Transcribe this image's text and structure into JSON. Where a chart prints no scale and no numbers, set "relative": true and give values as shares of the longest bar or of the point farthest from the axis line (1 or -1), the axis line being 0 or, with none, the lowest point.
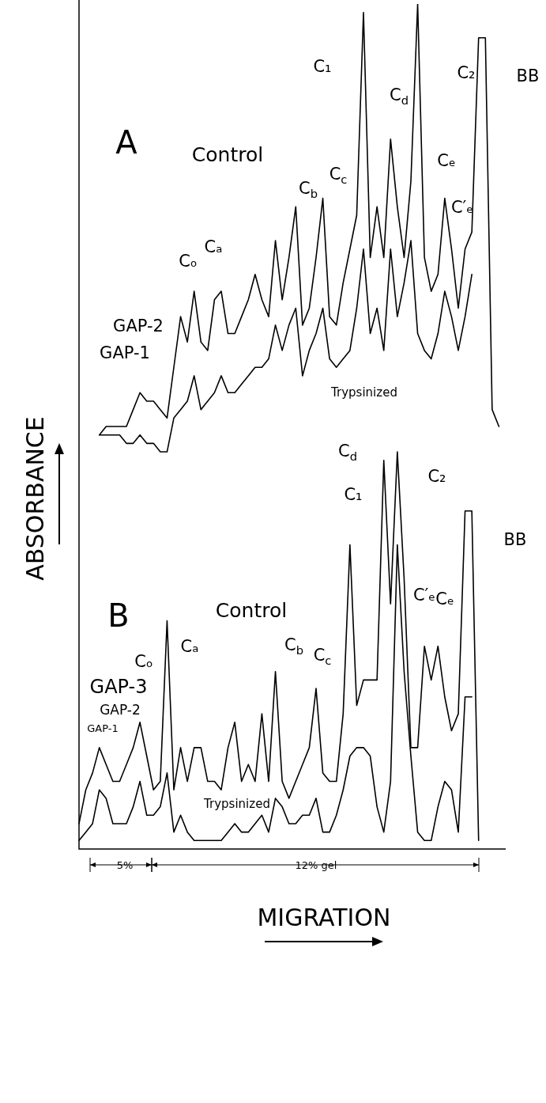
{
  "chart_data": {
    "type": "line",
    "relative": true,
    "marker": "none",
    "legend": false,
    "xlabel": "MIGRATION",
    "ylabel": "ABSORBANCE",
    "categories": [
      null,
      null,
      null,
      null,
      null,
      null,
      null,
      null,
      null,
      null,
      null,
      null,
      null,
      null,
      null,
      null,
      null,
      null,
      null,
      null,
      null,
      null,
      null,
      null,
      null,
      null,
      null,
      null,
      null,
      null,
      null,
      null,
      null,
      null,
      null,
      null,
      null,
      null,
      null,
      null,
      null,
      null,
      null,
      null,
      null,
      null,
      null,
      null,
      null,
      null,
      null,
      null,
      null,
      null,
      null,
      null,
      null,
      null,
      null,
      null,
      null,
      null,
      null,
      null
    ],
    "series": [
      {
        "name": "Control",
        "color": "#000000",
        "values": [
          null,
          null,
          null,
          0.49,
          0.5,
          0.5,
          0.5,
          0.5,
          0.52,
          0.54,
          0.53,
          0.53,
          0.52,
          0.51,
          0.57,
          0.63,
          0.6,
          0.66,
          0.6,
          0.59,
          0.65,
          0.66,
          0.61,
          0.61,
          0.63,
          0.65,
          0.68,
          0.65,
          0.63,
          0.72,
          0.65,
          0.7,
          0.76,
          0.62,
          0.64,
          0.7,
          0.77,
          0.63,
          0.62,
          0.67,
          0.71,
          0.75,
          0.99,
          0.7,
          0.76,
          0.7,
          0.84,
          0.76,
          0.7,
          0.79,
          1.0,
          0.7,
          0.66,
          0.68,
          0.77,
          0.71,
          0.64,
          0.71,
          0.73,
          0.96,
          0.96,
          0.52,
          0.5,
          null
        ]
      },
      {
        "name": "Trypsinized",
        "color": "#000000",
        "values": [
          null,
          null,
          null,
          0.49,
          0.49,
          0.49,
          0.49,
          0.48,
          0.48,
          0.49,
          0.48,
          0.48,
          0.47,
          0.47,
          0.51,
          0.52,
          0.53,
          0.56,
          0.52,
          0.53,
          0.54,
          0.56,
          0.54,
          0.54,
          0.55,
          0.56,
          0.57,
          0.57,
          0.58,
          0.62,
          0.59,
          0.62,
          0.64,
          0.56,
          0.59,
          0.61,
          0.64,
          0.58,
          0.57,
          0.58,
          0.59,
          0.64,
          0.71,
          0.61,
          0.64,
          0.59,
          0.71,
          0.63,
          0.67,
          0.72,
          0.61,
          0.59,
          0.58,
          0.61,
          0.66,
          0.63,
          0.59,
          0.63,
          0.68,
          null,
          null,
          null,
          null,
          null
        ]
      },
      {
        "name": "Control",
        "color": "#000000",
        "values": [
          0.03,
          0.07,
          0.09,
          0.12,
          0.1,
          0.08,
          0.08,
          0.1,
          0.12,
          0.15,
          0.11,
          0.07,
          0.08,
          0.27,
          0.07,
          0.12,
          0.08,
          0.12,
          0.12,
          0.08,
          0.08,
          0.07,
          0.12,
          0.15,
          0.08,
          0.1,
          0.08,
          0.16,
          0.08,
          0.21,
          0.08,
          0.06,
          0.08,
          0.1,
          0.12,
          0.19,
          0.09,
          0.08,
          0.08,
          0.16,
          0.36,
          0.17,
          0.2,
          0.2,
          0.2,
          0.46,
          0.29,
          0.47,
          0.32,
          0.12,
          0.12,
          0.24,
          0.2,
          0.24,
          0.18,
          0.14,
          0.16,
          0.4,
          0.4,
          0.01,
          null,
          null,
          null,
          null
        ]
      },
      {
        "name": "Trypsinized",
        "color": "#000000",
        "values": [
          0.01,
          0.02,
          0.03,
          0.07,
          0.06,
          0.03,
          0.03,
          0.03,
          0.05,
          0.08,
          0.04,
          0.04,
          0.05,
          0.09,
          0.02,
          0.04,
          0.02,
          0.01,
          0.01,
          0.01,
          0.01,
          0.01,
          0.02,
          0.03,
          0.02,
          0.02,
          0.03,
          0.04,
          0.02,
          0.06,
          0.05,
          0.03,
          0.03,
          0.04,
          0.04,
          0.06,
          0.02,
          0.02,
          0.04,
          0.07,
          0.11,
          0.12,
          0.12,
          0.11,
          0.05,
          0.02,
          0.08,
          0.36,
          0.21,
          0.11,
          0.02,
          0.01,
          0.01,
          0.05,
          0.08,
          0.07,
          0.02,
          0.18,
          0.18,
          null,
          null,
          null,
          null,
          null
        ]
      }
    ],
    "annotations": [
      "A",
      "GAP-2",
      "GAP-1",
      "Cₒ",
      "Cₐ",
      "C$_{b}$",
      "C$_{c}$",
      "C₁",
      "C$_{d}$",
      "C₂",
      "BB",
      "Cₑ",
      "C′ₑ",
      "B",
      "GAP-3",
      "GAP-2",
      "GAP-1",
      "Cₒ",
      "Cₐ",
      "C$_{b}$",
      "C$_{c}$",
      "C₁",
      "C$_{d}$",
      "C₂",
      "BB",
      "C′ₑ",
      "Cₑ",
      "5%",
      "12% gel"
    ]
  }
}
